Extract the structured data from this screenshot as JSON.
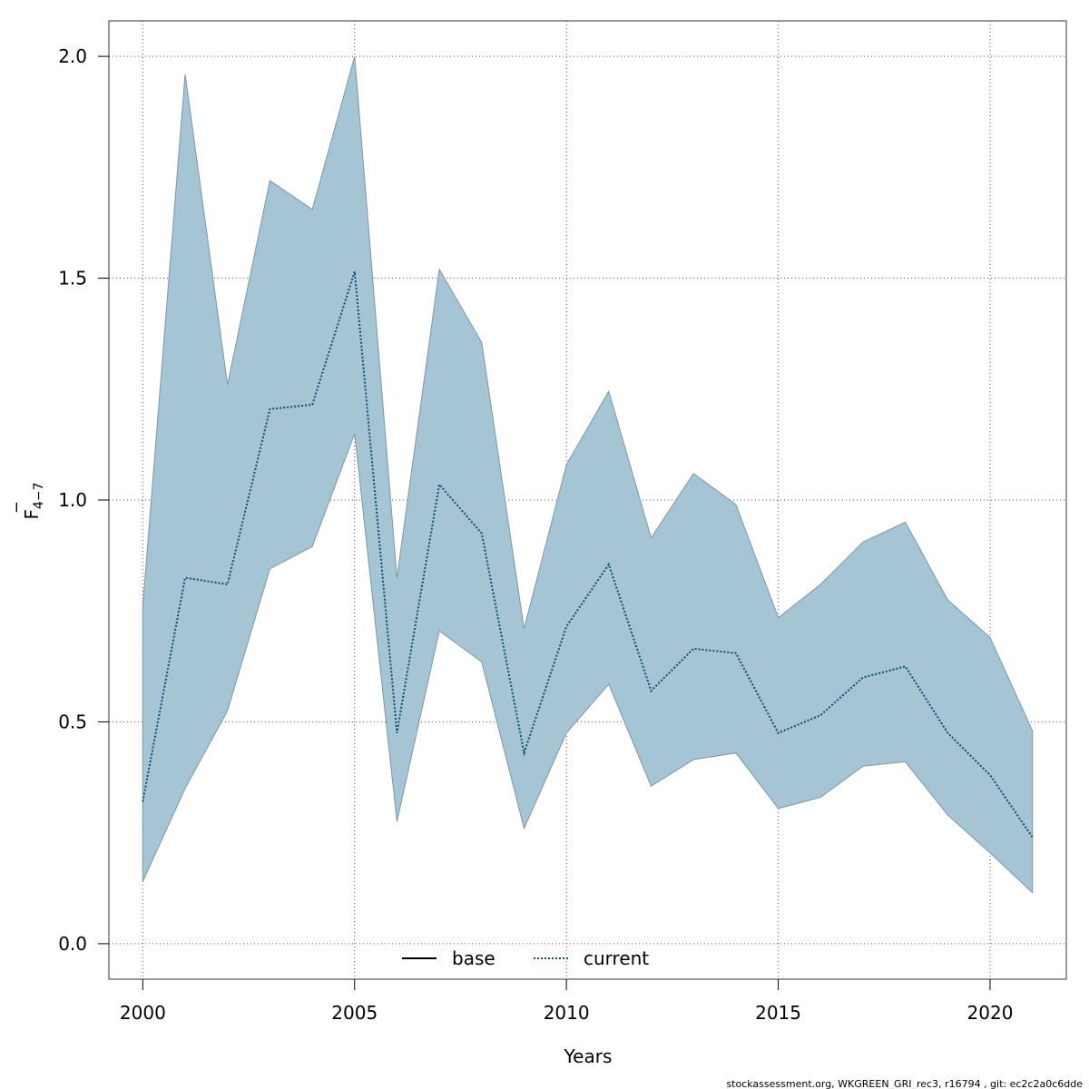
{
  "chart_data": {
    "type": "area",
    "xlabel": "Years",
    "ylabel": "F",
    "ylabel_bar": "‾",
    "ylabel_sub": "4−7",
    "xlim": [
      1999.2,
      2021.8
    ],
    "ylim": [
      -0.08,
      2.08
    ],
    "x_ticks": [
      2000,
      2005,
      2010,
      2015,
      2020
    ],
    "y_ticks": [
      0.0,
      0.5,
      1.0,
      1.5,
      2.0
    ],
    "y_tick_labels": [
      "0.0",
      "0.5",
      "1.0",
      "1.5",
      "2.0"
    ],
    "grid": true,
    "x": [
      2000,
      2001,
      2002,
      2003,
      2004,
      2005,
      2006,
      2007,
      2008,
      2009,
      2010,
      2011,
      2012,
      2013,
      2014,
      2015,
      2016,
      2017,
      2018,
      2019,
      2020,
      2021
    ],
    "series": [
      {
        "name": "current",
        "line_style": "dotted",
        "color": "#0b4f73",
        "values": [
          0.32,
          0.825,
          0.81,
          1.205,
          1.215,
          1.515,
          0.475,
          1.035,
          0.925,
          0.43,
          0.715,
          0.855,
          0.57,
          0.665,
          0.655,
          0.475,
          0.515,
          0.6,
          0.625,
          0.475,
          0.38,
          0.24
        ],
        "lower": [
          0.14,
          0.35,
          0.525,
          0.845,
          0.895,
          1.15,
          0.275,
          0.705,
          0.635,
          0.26,
          0.475,
          0.585,
          0.355,
          0.415,
          0.43,
          0.305,
          0.33,
          0.4,
          0.41,
          0.29,
          0.205,
          0.115
        ],
        "upper": [
          0.76,
          1.96,
          1.26,
          1.72,
          1.655,
          2.0,
          0.825,
          1.52,
          1.355,
          0.71,
          1.08,
          1.245,
          0.915,
          1.06,
          0.99,
          0.735,
          0.81,
          0.905,
          0.95,
          0.775,
          0.69,
          0.48
        ]
      }
    ],
    "legend": [
      {
        "label": "base",
        "style": "solid"
      },
      {
        "label": "current",
        "style": "dotted"
      }
    ],
    "legend_placement": "bottom-center",
    "band_color": "#a5c4d4",
    "band_edge_color": "#7f96a6"
  },
  "footer_text": "stockassessment.org, WKGREEN_GRI_rec3, r16794 , git: ec2c2a0c6dde"
}
